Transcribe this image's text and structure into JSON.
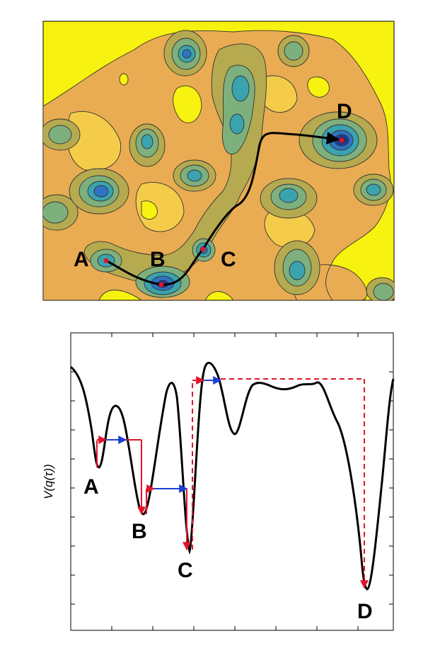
{
  "top_panel": {
    "labels": {
      "a": "A",
      "b": "B",
      "c": "C",
      "d": "D"
    },
    "colors": {
      "background": "#f7f20f",
      "light": "#f5cc4a",
      "orange": "#e9ac52",
      "olive": "#b6aa50",
      "green": "#7eb07e",
      "teal": "#3aa3ae",
      "blue": "#2f74c2",
      "deep": "#1e3c99",
      "path": "#000000",
      "marker": "#e0152b"
    }
  },
  "bottom_panel": {
    "ylabel": "V(q(τ))",
    "labels": {
      "a": "A",
      "b": "B",
      "c": "C",
      "d": "D"
    },
    "colors": {
      "curve": "#000000",
      "red": "#e0152b",
      "blue": "#1a3fd6"
    }
  }
}
